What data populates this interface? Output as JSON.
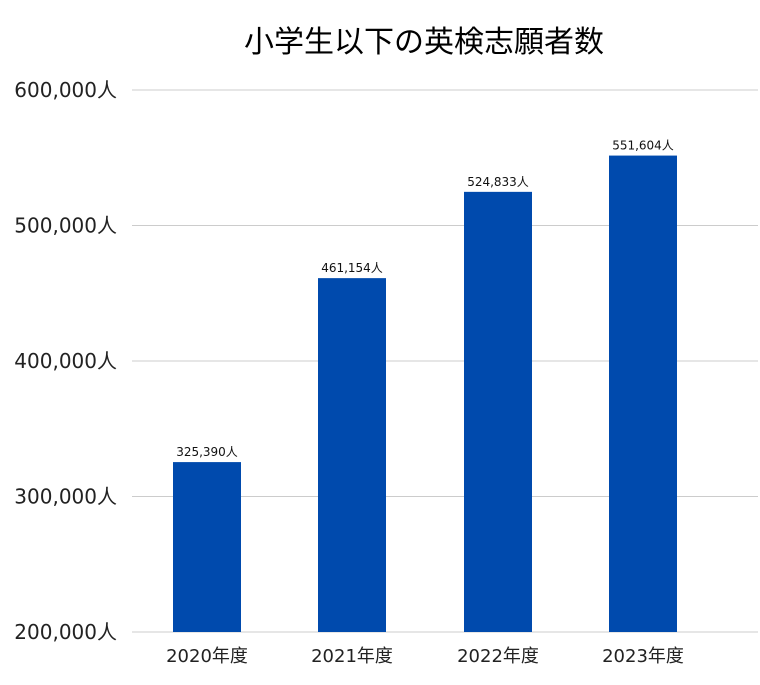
{
  "chart_data": {
    "type": "bar",
    "title": "小学生以下の英検志願者数",
    "xlabel": "",
    "ylabel": "",
    "categories": [
      "2020年度",
      "2021年度",
      "2022年度",
      "2023年度"
    ],
    "values": [
      325390,
      461154,
      524833,
      551604
    ],
    "value_labels": [
      "325,390人",
      "461,154人",
      "524,833人",
      "551,604人"
    ],
    "ylim": [
      200000,
      600000
    ],
    "yticks": [
      200000,
      300000,
      400000,
      500000,
      600000
    ],
    "ytick_labels": [
      "200,000人",
      "300,000人",
      "400,000人",
      "500,000人",
      "600,000人"
    ],
    "grid": true,
    "legend": "none",
    "colors": {
      "bar": "#004AAD",
      "grid": "#CCCCCC"
    }
  }
}
